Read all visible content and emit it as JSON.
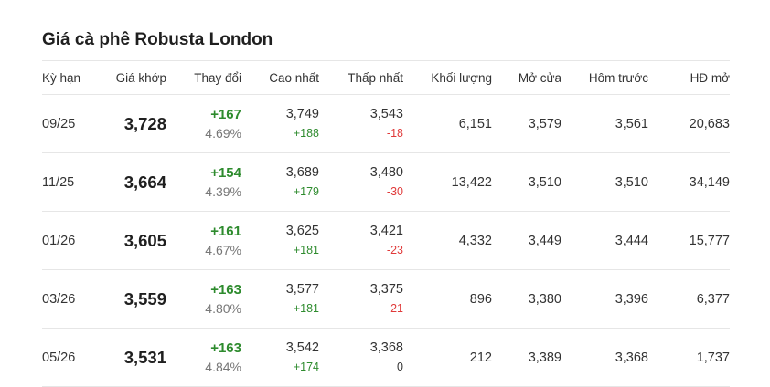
{
  "title": "Giá cà phê Robusta London",
  "headers": {
    "term": "Kỳ hạn",
    "match_price": "Giá khớp",
    "change": "Thay đổi",
    "high": "Cao nhất",
    "low": "Thấp nhất",
    "volume": "Khối lượng",
    "open": "Mở cửa",
    "prev_close": "Hôm trước",
    "open_interest": "HĐ mở"
  },
  "rows": [
    {
      "term": "09/25",
      "price": "3,728",
      "change": "+167",
      "change_pct": "4.69%",
      "high": "3,749",
      "high_diff": "+188",
      "low": "3,543",
      "low_diff": "-18",
      "volume": "6,151",
      "open": "3,579",
      "prev_close": "3,561",
      "open_interest": "20,683"
    },
    {
      "term": "11/25",
      "price": "3,664",
      "change": "+154",
      "change_pct": "4.39%",
      "high": "3,689",
      "high_diff": "+179",
      "low": "3,480",
      "low_diff": "-30",
      "volume": "13,422",
      "open": "3,510",
      "prev_close": "3,510",
      "open_interest": "34,149"
    },
    {
      "term": "01/26",
      "price": "3,605",
      "change": "+161",
      "change_pct": "4.67%",
      "high": "3,625",
      "high_diff": "+181",
      "low": "3,421",
      "low_diff": "-23",
      "volume": "4,332",
      "open": "3,449",
      "prev_close": "3,444",
      "open_interest": "15,777"
    },
    {
      "term": "03/26",
      "price": "3,559",
      "change": "+163",
      "change_pct": "4.80%",
      "high": "3,577",
      "high_diff": "+181",
      "low": "3,375",
      "low_diff": "-21",
      "volume": "896",
      "open": "3,380",
      "prev_close": "3,396",
      "open_interest": "6,377"
    },
    {
      "term": "05/26",
      "price": "3,531",
      "change": "+163",
      "change_pct": "4.84%",
      "high": "3,542",
      "high_diff": "+174",
      "low": "3,368",
      "low_diff": "0",
      "volume": "212",
      "open": "3,389",
      "prev_close": "3,368",
      "open_interest": "1,737"
    }
  ],
  "colors": {
    "up": "#2e8b2e",
    "down": "#e03a3a",
    "muted": "#777777",
    "divider": "#e6e6e6"
  }
}
